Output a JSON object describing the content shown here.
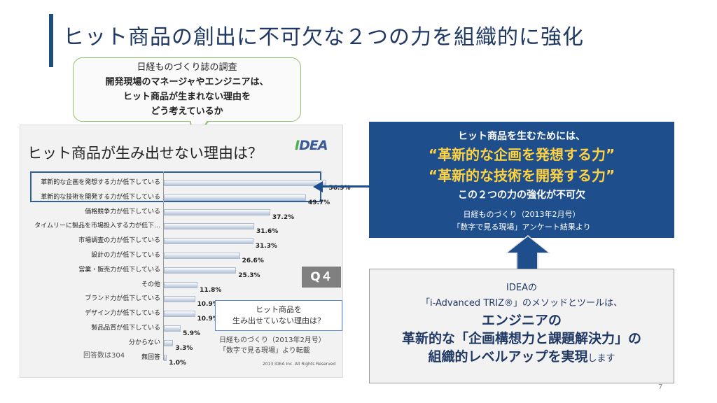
{
  "title": "ヒット商品の創出に不可欠な２つの力を組織的に強化",
  "bubble": {
    "line1": "日経ものづくり誌の調査",
    "line2": "開発現場のマネージャやエンジニアは、",
    "line3": "ヒット商品が生まれない理由を",
    "line4": "どう考えているか"
  },
  "chart_panel": {
    "title": "ヒット商品が生み出せない理由は？",
    "logo_i": "I",
    "logo_rest": "DEA",
    "q4": "Q４",
    "q4_box_line1": "ヒット商品を",
    "q4_box_line2": "生み出せていない理由は？",
    "source_line1": "日経ものづくり（2013年2月号）",
    "source_line2": "「数字で見る現場」より転載",
    "respondents": "回答数は304",
    "copyright": "2013 IDEA Inc. All Rights Reserved"
  },
  "chart_data": {
    "type": "bar",
    "orientation": "horizontal",
    "categories": [
      "革新的な企画を発想する力が低下している",
      "革新的な技術を開発する力が低下している",
      "価格競争力が低下している",
      "タイムリーに製品を市場投入する力が低下…",
      "市場調査の力が低下している",
      "設計の力が低下している",
      "営業・販売力が低下している",
      "その他",
      "ブランド力が低下している",
      "デザイン力が低下している",
      "製品品質が低下している",
      "分からない",
      "無回答"
    ],
    "values": [
      56.9,
      49.7,
      37.2,
      31.6,
      31.3,
      26.6,
      25.3,
      11.8,
      10.9,
      10.9,
      5.9,
      3.3,
      1.0
    ],
    "labels": [
      "56.9%",
      "49.7%",
      "37.2%",
      "31.6%",
      "31.3%",
      "26.6%",
      "25.3%",
      "11.8%",
      "10.9%",
      "10.9%",
      "5.9%",
      "3.3%",
      "1.0%"
    ],
    "xlim": [
      0,
      60
    ],
    "highlighted": [
      0,
      1
    ]
  },
  "blue_box": {
    "line1": "ヒット商品を生むためには、",
    "line2": "“革新的な企画を発想する力”",
    "line3": "“革新的な技術を開発する力”",
    "line4": "この２つの力の強化が不可欠",
    "source1": "日経ものづくり（2013年2月号）",
    "source2": "「数字で見る現場」アンケート結果より"
  },
  "bottom_box": {
    "line1": "IDEAの",
    "line2": "「i-Advanced TRIZ®」のメソッドとツールは、",
    "line3": "エンジニアの",
    "line4": "革新的な「企画構想力と課題解決力」の",
    "line5_bold": "組織的レベルアップを実現",
    "line5_tail": "します"
  },
  "page_number": "7",
  "colors": {
    "title": "#1f3864",
    "blue_box": "#1f4e8c",
    "highlight_text": "#ffd23f",
    "bubble_border": "#8fc36c"
  }
}
